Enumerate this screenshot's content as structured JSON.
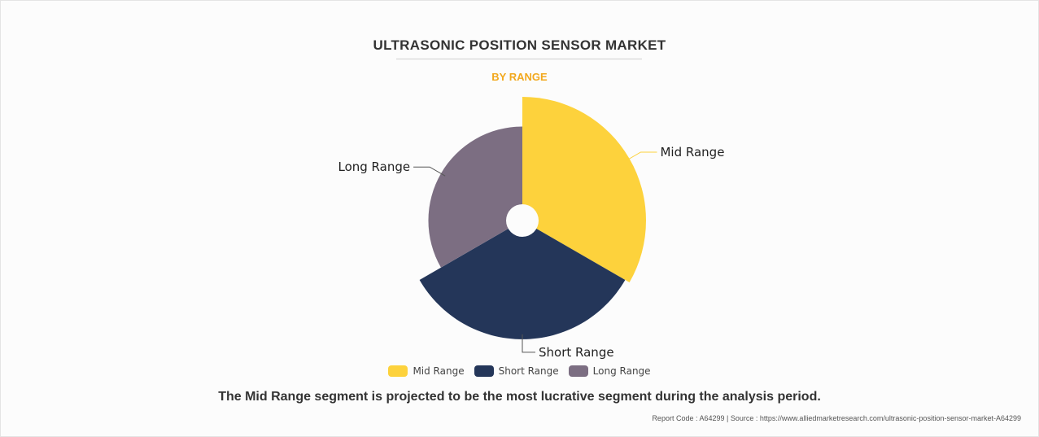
{
  "colors": {
    "mid_range": "#fdd23c",
    "short_range": "#243659",
    "long_range": "#7c6e82",
    "subtitle": "#f2a81d"
  },
  "chart_data": {
    "type": "pie",
    "variant": "rose",
    "title": "ULTRASONIC POSITION SENSOR MARKET",
    "subtitle": "BY RANGE",
    "legend_position": "bottom",
    "slices": [
      {
        "label": "Mid Range",
        "relative_size": 1.0,
        "angle_share": 0.333
      },
      {
        "label": "Short Range",
        "relative_size": 0.96,
        "angle_share": 0.333
      },
      {
        "label": "Long Range",
        "relative_size": 0.76,
        "angle_share": 0.333
      }
    ]
  },
  "legend": {
    "items": [
      {
        "label": "Mid Range"
      },
      {
        "label": "Short Range"
      },
      {
        "label": "Long Range"
      }
    ]
  },
  "caption": "The Mid Range segment is projected to be the most lucrative segment during the analysis period.",
  "footer": "Report Code : A64299  |  Source : https://www.alliedmarketresearch.com/ultrasonic-position-sensor-market-A64299"
}
